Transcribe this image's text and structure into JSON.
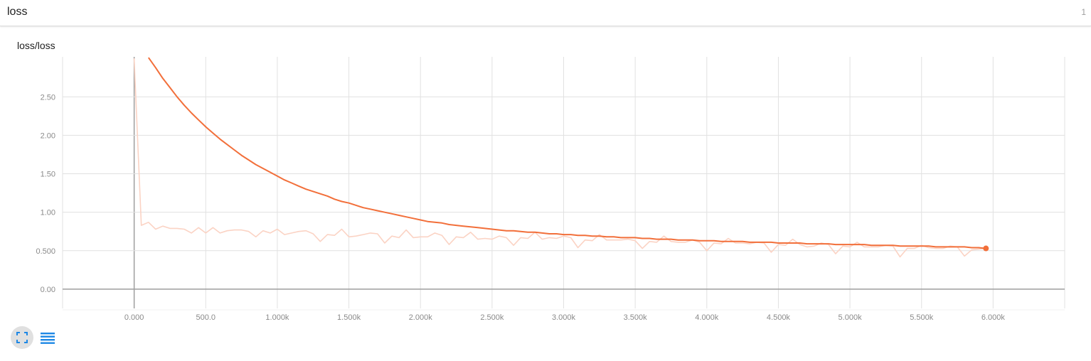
{
  "header": {
    "title": "loss",
    "count": "1"
  },
  "card": {
    "title": "loss/loss"
  },
  "colors": {
    "accent": "#f26f3a",
    "raw": "#fbd3c4",
    "grid": "#e1e1e1",
    "axis": "#9e9e9e",
    "button_blue": "#1e88e5"
  },
  "controls": {
    "expand_icon": "fullscreen-icon",
    "data_icon": "list-icon"
  },
  "chart_data": {
    "type": "line",
    "title": "loss/loss",
    "xlabel": "",
    "ylabel": "",
    "xlim": [
      -500,
      6500
    ],
    "ylim": [
      -0.25,
      3.02
    ],
    "grid": true,
    "x_ticks": [
      0,
      500,
      1000,
      1500,
      2000,
      2500,
      3000,
      3500,
      4000,
      4500,
      5000,
      5500,
      6000
    ],
    "x_tick_labels": [
      "0.000",
      "500.0",
      "1.000k",
      "1.500k",
      "2.000k",
      "2.500k",
      "3.000k",
      "3.500k",
      "4.000k",
      "4.500k",
      "5.000k",
      "5.500k",
      "6.000k"
    ],
    "y_ticks": [
      0,
      0.5,
      1.0,
      1.5,
      2.0,
      2.5
    ],
    "y_tick_labels": [
      "0.00",
      "0.500",
      "1.00",
      "1.50",
      "2.00",
      "2.50"
    ],
    "series": [
      {
        "style": "raw",
        "x": [
          0,
          50,
          100,
          150,
          200,
          250,
          300,
          350,
          400,
          450,
          500,
          550,
          600,
          650,
          700,
          750,
          800,
          850,
          900,
          950,
          1000,
          1050,
          1100,
          1150,
          1200,
          1250,
          1300,
          1350,
          1400,
          1450,
          1500,
          1550,
          1600,
          1650,
          1700,
          1750,
          1800,
          1850,
          1900,
          1950,
          2000,
          2050,
          2100,
          2150,
          2200,
          2250,
          2300,
          2350,
          2400,
          2450,
          2500,
          2550,
          2600,
          2650,
          2700,
          2750,
          2800,
          2850,
          2900,
          2950,
          3000,
          3050,
          3100,
          3150,
          3200,
          3250,
          3300,
          3350,
          3400,
          3450,
          3500,
          3550,
          3600,
          3650,
          3700,
          3750,
          3800,
          3850,
          3900,
          3950,
          4000,
          4050,
          4100,
          4150,
          4200,
          4250,
          4300,
          4350,
          4400,
          4450,
          4500,
          4550,
          4600,
          4650,
          4700,
          4750,
          4800,
          4850,
          4900,
          4950,
          5000,
          5050,
          5100,
          5150,
          5200,
          5250,
          5300,
          5350,
          5400,
          5450,
          5500,
          5550,
          5600,
          5650,
          5700,
          5750,
          5800,
          5850,
          5900,
          5950
        ],
        "y": [
          3.0,
          0.83,
          0.87,
          0.78,
          0.82,
          0.79,
          0.79,
          0.78,
          0.73,
          0.8,
          0.73,
          0.8,
          0.73,
          0.76,
          0.77,
          0.77,
          0.75,
          0.68,
          0.76,
          0.73,
          0.78,
          0.71,
          0.73,
          0.75,
          0.76,
          0.72,
          0.62,
          0.71,
          0.7,
          0.78,
          0.68,
          0.69,
          0.71,
          0.73,
          0.72,
          0.6,
          0.69,
          0.67,
          0.77,
          0.67,
          0.68,
          0.68,
          0.73,
          0.7,
          0.58,
          0.68,
          0.67,
          0.74,
          0.65,
          0.66,
          0.65,
          0.69,
          0.67,
          0.57,
          0.67,
          0.66,
          0.74,
          0.65,
          0.67,
          0.66,
          0.69,
          0.67,
          0.54,
          0.64,
          0.63,
          0.71,
          0.64,
          0.64,
          0.64,
          0.65,
          0.63,
          0.53,
          0.62,
          0.61,
          0.69,
          0.62,
          0.61,
          0.61,
          0.64,
          0.61,
          0.5,
          0.6,
          0.59,
          0.66,
          0.6,
          0.6,
          0.59,
          0.61,
          0.6,
          0.48,
          0.58,
          0.57,
          0.65,
          0.58,
          0.55,
          0.56,
          0.6,
          0.58,
          0.46,
          0.56,
          0.55,
          0.61,
          0.55,
          0.55,
          0.55,
          0.57,
          0.56,
          0.42,
          0.53,
          0.53,
          0.57,
          0.54,
          0.53,
          0.53,
          0.56,
          0.55,
          0.43,
          0.51,
          0.52,
          0.53
        ]
      },
      {
        "style": "smoothed",
        "x": [
          100,
          150,
          200,
          250,
          300,
          350,
          400,
          450,
          500,
          550,
          600,
          650,
          700,
          750,
          800,
          850,
          900,
          950,
          1000,
          1050,
          1100,
          1150,
          1200,
          1250,
          1300,
          1350,
          1400,
          1450,
          1500,
          1550,
          1600,
          1650,
          1700,
          1750,
          1800,
          1850,
          1900,
          1950,
          2000,
          2050,
          2100,
          2150,
          2200,
          2250,
          2300,
          2350,
          2400,
          2450,
          2500,
          2550,
          2600,
          2650,
          2700,
          2750,
          2800,
          2850,
          2900,
          2950,
          3000,
          3050,
          3100,
          3150,
          3200,
          3250,
          3300,
          3350,
          3400,
          3450,
          3500,
          3550,
          3600,
          3650,
          3700,
          3750,
          3800,
          3850,
          3900,
          3950,
          4000,
          4050,
          4100,
          4150,
          4200,
          4250,
          4300,
          4350,
          4400,
          4450,
          4500,
          4550,
          4600,
          4650,
          4700,
          4750,
          4800,
          4850,
          4900,
          4950,
          5000,
          5050,
          5100,
          5150,
          5200,
          5250,
          5300,
          5350,
          5400,
          5450,
          5500,
          5550,
          5600,
          5650,
          5700,
          5750,
          5800,
          5850,
          5900,
          5950
        ],
        "y": [
          3.01,
          2.88,
          2.74,
          2.62,
          2.5,
          2.39,
          2.29,
          2.2,
          2.11,
          2.03,
          1.95,
          1.88,
          1.81,
          1.74,
          1.68,
          1.62,
          1.57,
          1.52,
          1.47,
          1.42,
          1.38,
          1.34,
          1.3,
          1.27,
          1.24,
          1.21,
          1.17,
          1.14,
          1.12,
          1.09,
          1.06,
          1.04,
          1.02,
          1.0,
          0.98,
          0.96,
          0.94,
          0.92,
          0.9,
          0.88,
          0.87,
          0.86,
          0.84,
          0.83,
          0.82,
          0.81,
          0.8,
          0.79,
          0.78,
          0.77,
          0.76,
          0.76,
          0.75,
          0.74,
          0.74,
          0.73,
          0.72,
          0.72,
          0.71,
          0.71,
          0.7,
          0.7,
          0.69,
          0.69,
          0.68,
          0.68,
          0.67,
          0.67,
          0.67,
          0.66,
          0.66,
          0.65,
          0.65,
          0.65,
          0.64,
          0.64,
          0.64,
          0.63,
          0.63,
          0.63,
          0.62,
          0.62,
          0.62,
          0.62,
          0.61,
          0.61,
          0.61,
          0.61,
          0.6,
          0.6,
          0.6,
          0.6,
          0.59,
          0.59,
          0.59,
          0.59,
          0.58,
          0.58,
          0.58,
          0.58,
          0.58,
          0.57,
          0.57,
          0.57,
          0.57,
          0.56,
          0.56,
          0.56,
          0.56,
          0.56,
          0.55,
          0.55,
          0.55,
          0.55,
          0.55,
          0.54,
          0.54,
          0.53
        ]
      }
    ]
  }
}
